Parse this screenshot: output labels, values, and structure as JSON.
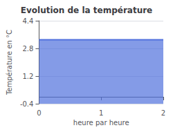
{
  "chart_data": {
    "type": "area",
    "title": "Evolution de la température",
    "x": [
      0,
      2
    ],
    "values": [
      3.3,
      3.3
    ],
    "xlabel": "heure par heure",
    "ylabel": "Température en °C",
    "xlim": [
      0,
      2
    ],
    "ylim": [
      -0.4,
      4.4
    ],
    "xticks": [
      0,
      1,
      2
    ],
    "yticks": [
      -0.4,
      1.2,
      2.8,
      4.4
    ],
    "grid": "y"
  }
}
